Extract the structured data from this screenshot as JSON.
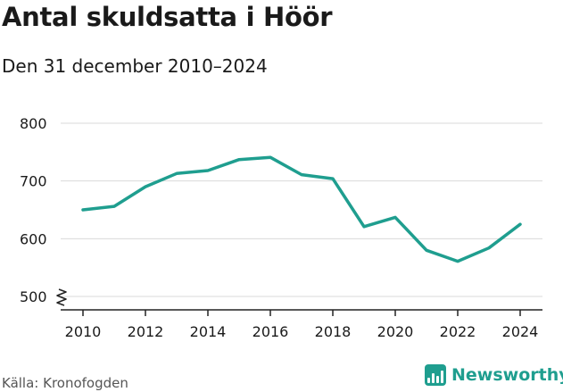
{
  "title": "Antal skuldsatta i Höör",
  "subtitle": "Den 31 december 2010–2024",
  "source": "Källa: Kronofogden",
  "brand": {
    "name": "Newsworthy",
    "icon": "newsworthy-logo-icon"
  },
  "colors": {
    "line": "#1f9e8f",
    "grid": "#d9d9d9",
    "axis": "#222222",
    "text": "#1a1a1a",
    "brand": "#1f9e8f"
  },
  "chart_data": {
    "type": "line",
    "title": "Antal skuldsatta i Höör",
    "subtitle": "Den 31 december 2010–2024",
    "x": [
      2010,
      2011,
      2012,
      2013,
      2014,
      2015,
      2016,
      2017,
      2018,
      2019,
      2020,
      2021,
      2022,
      2023,
      2024
    ],
    "series": [
      {
        "values": [
          650,
          656,
          690,
          713,
          718,
          737,
          741,
          711,
          704,
          621,
          637,
          580,
          561,
          584,
          625
        ]
      }
    ],
    "xticks": [
      "2010",
      "2012",
      "2014",
      "2016",
      "2018",
      "2020",
      "2022",
      "2024"
    ],
    "yticks": [
      "500",
      "600",
      "700",
      "800"
    ],
    "ylim": [
      500,
      800
    ],
    "xlim": [
      2010,
      2024
    ],
    "y_axis_break": true,
    "grid": "horizontal",
    "legend": "none"
  }
}
